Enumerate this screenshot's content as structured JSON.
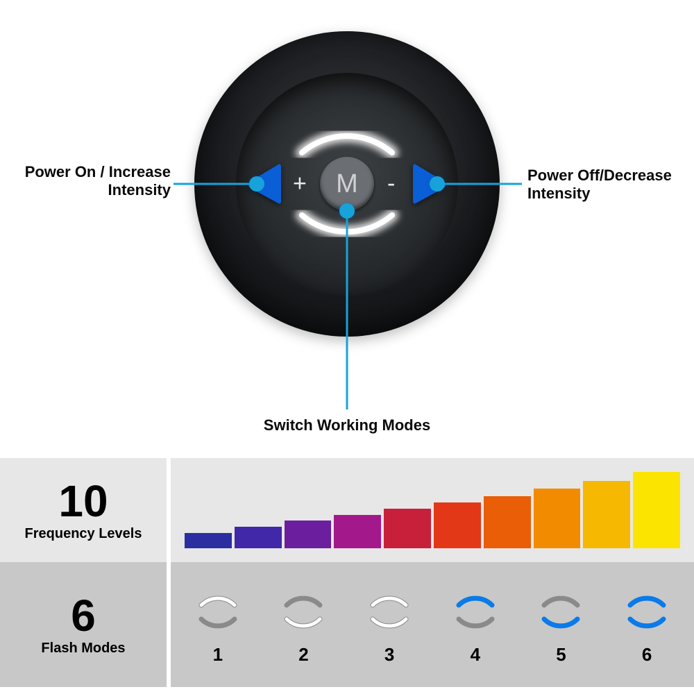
{
  "device": {
    "label_left_line1": "Power On / Increase",
    "label_left_line2": "Intensity",
    "label_right_line1": "Power Off/Decrease",
    "label_right_line2": "Intensity",
    "label_bottom": "Switch Working Modes",
    "center_letter": "M",
    "plus_sign": "+",
    "minus_sign": "-",
    "colors": {
      "button_blue": "#0a5ed6",
      "callout_cyan": "#17a3d9",
      "arc_glow": "#f3f4f6",
      "device_dark": "#0b0c0e",
      "text_black": "#0a0a0a"
    }
  },
  "frequency": {
    "count_label": "10",
    "subtitle": "Frequency Levels",
    "bar_colors": [
      "#2b2ea0",
      "#4028a8",
      "#6b1f9f",
      "#a3188a",
      "#c8203a",
      "#e23818",
      "#e95e06",
      "#f38b00",
      "#f6b800",
      "#fbe500"
    ],
    "bar_heights_pct": [
      20,
      28,
      36,
      44,
      52,
      60,
      68,
      78,
      88,
      100
    ],
    "panel_bg": "#e7e7e7"
  },
  "flash": {
    "count_label": "6",
    "subtitle": "Flash Modes",
    "panel_bg": "#c8c8c8",
    "modes": [
      {
        "num": "1",
        "top": "white",
        "bottom": "off"
      },
      {
        "num": "2",
        "top": "off",
        "bottom": "white"
      },
      {
        "num": "3",
        "top": "white",
        "bottom": "white"
      },
      {
        "num": "4",
        "top": "blue",
        "bottom": "off"
      },
      {
        "num": "5",
        "top": "off",
        "bottom": "blue"
      },
      {
        "num": "6",
        "top": "blue",
        "bottom": "blue"
      }
    ],
    "arc_colors": {
      "white": {
        "stroke": "#ffffff",
        "outline": "#8a8a8a"
      },
      "blue": {
        "stroke": "#0a7be8",
        "outline": "#0a7be8"
      },
      "off": {
        "stroke": "none",
        "outline": "#8a8a8a"
      }
    }
  }
}
